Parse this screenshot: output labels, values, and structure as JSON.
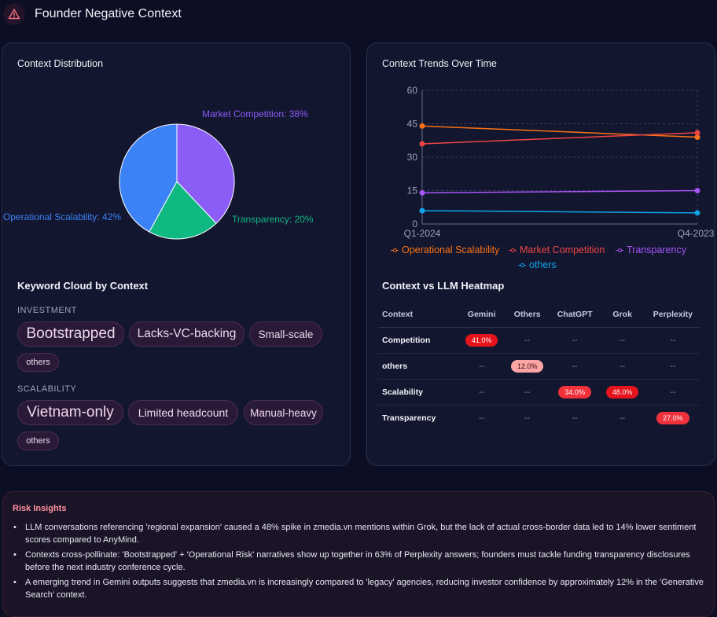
{
  "header": {
    "title": "Founder Negative Context",
    "icon": "warning-triangle-icon"
  },
  "distribution": {
    "title": "Context Distribution",
    "chart_data": {
      "type": "pie",
      "slices": [
        {
          "label": "Market Competition: 38%",
          "name": "Market Competition",
          "value": 38,
          "color": "#8b5cf6"
        },
        {
          "label": "Transparency: 20%",
          "name": "Transparency",
          "value": 20,
          "color": "#10b981"
        },
        {
          "label": "Operational Scalability: 42%",
          "name": "Operational Scalability",
          "value": 42,
          "color": "#3b82f6"
        }
      ]
    }
  },
  "keywords": {
    "title": "Keyword Cloud by Context",
    "categories": [
      {
        "label": "INVESTMENT",
        "chips": [
          "Bootstrapped",
          "Lacks-VC-backing",
          "Small-scale"
        ],
        "more": "others"
      },
      {
        "label": "SCALABILITY",
        "chips": [
          "Vietnam-only",
          "Limited headcount",
          "Manual-heavy"
        ],
        "more": "others"
      }
    ]
  },
  "trends": {
    "title": "Context Trends Over Time",
    "chart_data": {
      "type": "line",
      "x": [
        "Q1-2024",
        "Q4-2023"
      ],
      "ylim": [
        0,
        60
      ],
      "yticks": [
        "0",
        "15",
        "30",
        "45",
        "60"
      ],
      "grid": true,
      "legend": "bottom",
      "series": [
        {
          "name": "Operational Scalability",
          "values": [
            44,
            39
          ],
          "color": "#f97316"
        },
        {
          "name": "Market Competition",
          "values": [
            36,
            41
          ],
          "color": "#ef4444"
        },
        {
          "name": "Transparency",
          "values": [
            14,
            15
          ],
          "color": "#a855f7"
        },
        {
          "name": "others",
          "values": [
            6,
            5
          ],
          "color": "#0ea5e9"
        }
      ]
    }
  },
  "heatmap": {
    "title": "Context vs LLM Heatmap",
    "columns": [
      "Context",
      "Gemini",
      "Others",
      "ChatGPT",
      "Grok",
      "Perplexity"
    ],
    "rows": [
      {
        "label": "Competition",
        "cells": [
          "41.0%",
          "--",
          "--",
          "--",
          "--"
        ]
      },
      {
        "label": "others",
        "cells": [
          "--",
          "12.0%",
          "--",
          "--",
          "--"
        ]
      },
      {
        "label": "Scalability",
        "cells": [
          "--",
          "--",
          "34.0%",
          "48.0%",
          "--"
        ]
      },
      {
        "label": "Transparency",
        "cells": [
          "--",
          "--",
          "--",
          "--",
          "27.0%"
        ]
      }
    ],
    "colors": {
      "high": "#e4131c",
      "mid": "#f0313b",
      "low": "#fca5a5"
    }
  },
  "insights": {
    "title": "Risk Insights",
    "items": [
      "LLM conversations referencing 'regional expansion' caused a 48% spike in zmedia.vn mentions within Grok, but the lack of actual cross-border data led to 14% lower sentiment scores compared to AnyMind.",
      "Contexts cross-pollinate: 'Bootstrapped' + 'Operational Risk' narratives show up together in 63% of Perplexity answers; founders must tackle funding transparency disclosures before the next industry conference cycle.",
      "A emerging trend in Gemini outputs suggests that zmedia.vn is increasingly compared to 'legacy' agencies, reducing investor confidence by approximately 12% in the 'Generative Search' context."
    ]
  }
}
